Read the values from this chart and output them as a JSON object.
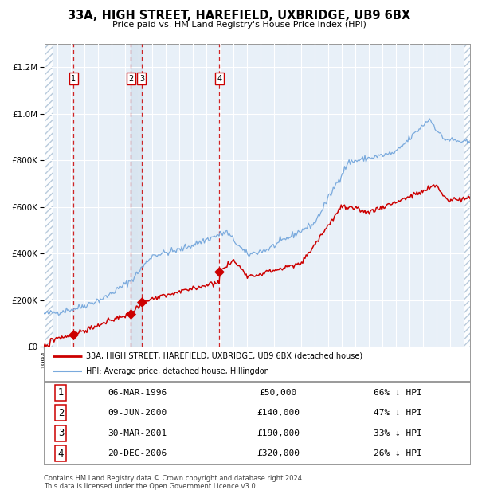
{
  "title": "33A, HIGH STREET, HAREFIELD, UXBRIDGE, UB9 6BX",
  "subtitle": "Price paid vs. HM Land Registry's House Price Index (HPI)",
  "legend_red": "33A, HIGH STREET, HAREFIELD, UXBRIDGE, UB9 6BX (detached house)",
  "legend_blue": "HPI: Average price, detached house, Hillingdon",
  "footer": "Contains HM Land Registry data © Crown copyright and database right 2024.\nThis data is licensed under the Open Government Licence v3.0.",
  "transactions": [
    {
      "label": "1",
      "date": "06-MAR-1996",
      "year": 1996.18,
      "price": 50000,
      "pct": "66% ↓ HPI"
    },
    {
      "label": "2",
      "date": "09-JUN-2000",
      "year": 2000.44,
      "price": 140000,
      "pct": "47% ↓ HPI"
    },
    {
      "label": "3",
      "date": "30-MAR-2001",
      "year": 2001.24,
      "price": 190000,
      "pct": "33% ↓ HPI"
    },
    {
      "label": "4",
      "date": "20-DEC-2006",
      "year": 2006.97,
      "price": 320000,
      "pct": "26% ↓ HPI"
    }
  ],
  "ylim": [
    0,
    1300000
  ],
  "xlim_start": 1994.0,
  "xlim_end": 2025.5,
  "plot_bg": "#e8f0f8",
  "grid_color": "#ffffff",
  "red_line_color": "#cc0000",
  "blue_line_color": "#7aaadd",
  "vline_color": "#cc0000",
  "transaction_box_color": "#cc0000",
  "hatch_region_end": 1994.7,
  "hatch_region_start2": 2025.0
}
